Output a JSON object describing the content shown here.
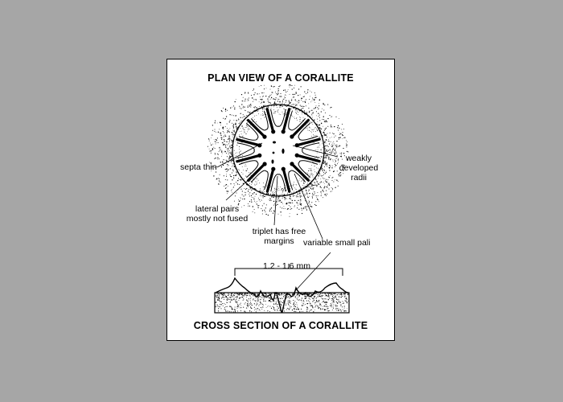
{
  "title_top": "PLAN VIEW OF A CORALLITE",
  "title_bottom": "CROSS SECTION OF A CORALLITE",
  "labels": {
    "septa_thin": "septa thin",
    "weakly_1": "weakly",
    "weakly_2": "developed",
    "weakly_3": "radii",
    "lateral_1": "lateral pairs",
    "lateral_2": "mostly not fused",
    "triplet_1": "triplet has free",
    "triplet_2": "margins",
    "pali": "variable small pali",
    "dimension": "1.2 - 1.6 mm"
  },
  "colors": {
    "background": "#a6a6a6",
    "card": "#ffffff",
    "ink": "#000000"
  }
}
